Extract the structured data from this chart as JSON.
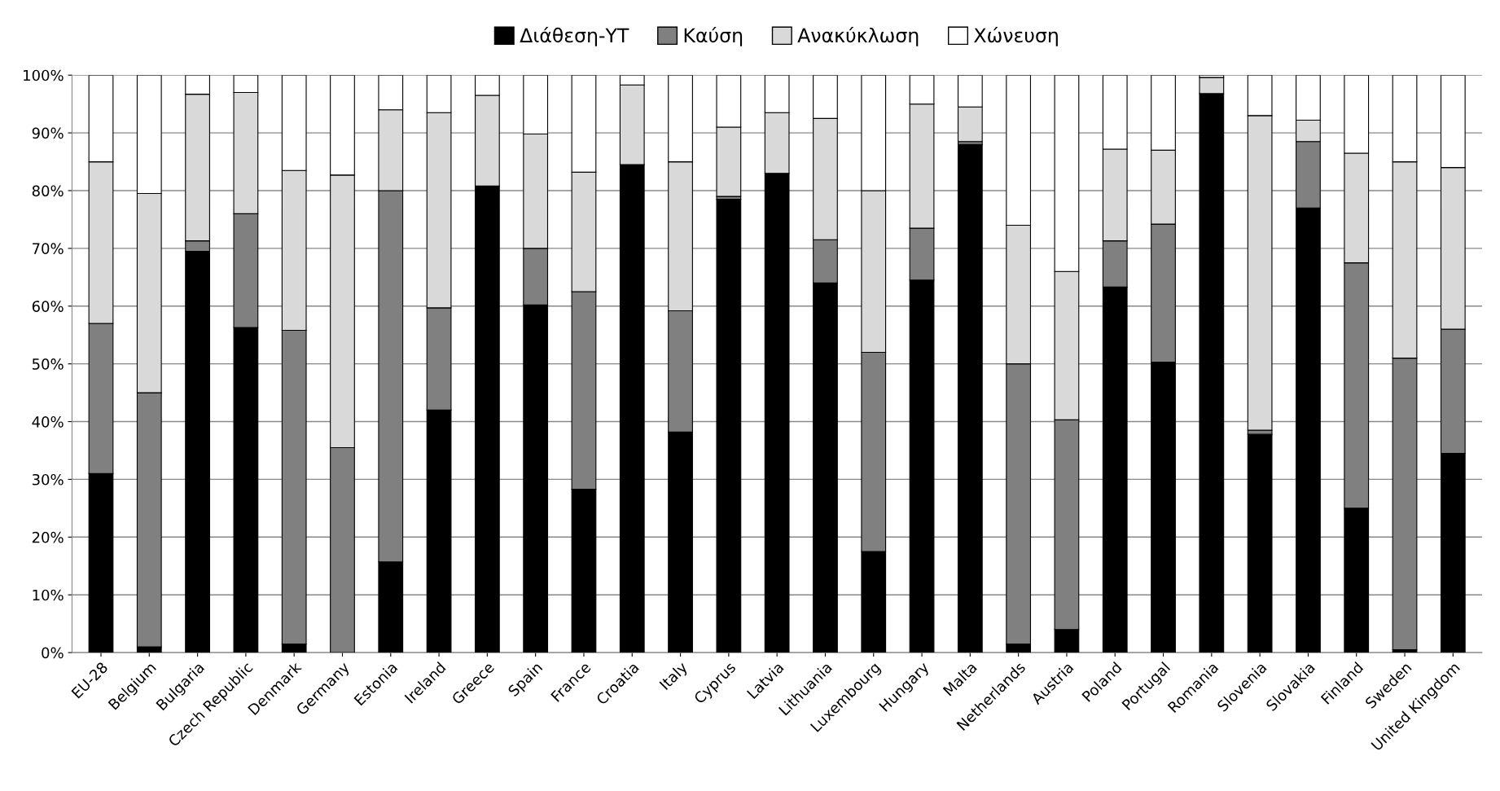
{
  "chart_data": {
    "type": "bar",
    "stacked": true,
    "categories": [
      "EU-28",
      "Belgium",
      "Bulgaria",
      "Czech Republic",
      "Denmark",
      "Germany",
      "Estonia",
      "Ireland",
      "Greece",
      "Spain",
      "France",
      "Croatia",
      "Italy",
      "Cyprus",
      "Latvia",
      "Lithuania",
      "Luxembourg",
      "Hungary",
      "Malta",
      "Netherlands",
      "Austria",
      "Poland",
      "Portugal",
      "Romania",
      "Slovenia",
      "Slovakia",
      "Finland",
      "Sweden",
      "United Kingdom"
    ],
    "series": [
      {
        "name": "Διάθεση-ΥΤ",
        "color": "#000000",
        "values": [
          31,
          1,
          69.5,
          56.3,
          1.5,
          0,
          15.7,
          42,
          80.8,
          60.2,
          28.3,
          84.5,
          38.2,
          78.5,
          83,
          64,
          17.5,
          64.5,
          88,
          1.5,
          4,
          63.3,
          50.3,
          96.8,
          37.8,
          77,
          25,
          0.5,
          34.5
        ]
      },
      {
        "name": "Καύση",
        "color": "#808080",
        "values": [
          26,
          44,
          1.8,
          19.7,
          54.3,
          35.5,
          64.3,
          17.7,
          0,
          9.8,
          34.2,
          0,
          21,
          0.5,
          0,
          7.5,
          34.5,
          9,
          0.5,
          48.5,
          36.3,
          8,
          23.9,
          0,
          0.7,
          11.5,
          42.5,
          50.5,
          21.5
        ]
      },
      {
        "name": "Ανακύκλωση",
        "color": "#d9d9d9",
        "values": [
          28,
          34.5,
          25.4,
          21,
          27.7,
          47.2,
          14,
          33.8,
          15.7,
          19.8,
          20.7,
          13.8,
          25.8,
          12,
          10.5,
          21,
          28,
          21.5,
          6,
          24,
          25.7,
          15.9,
          12.8,
          2.8,
          54.5,
          3.7,
          19,
          34,
          28
        ]
      },
      {
        "name": "Χώνευση",
        "color": "#ffffff",
        "values": [
          15,
          20.5,
          3.3,
          3,
          16.5,
          17.3,
          6,
          6.5,
          3.5,
          10.2,
          16.8,
          1.7,
          15,
          9,
          6.5,
          7.5,
          20,
          5,
          5.5,
          26,
          34,
          12.8,
          13,
          0.4,
          7,
          7.8,
          13.5,
          15,
          16
        ]
      }
    ],
    "ylim": [
      0,
      100
    ],
    "yticks": [
      {
        "value": 0,
        "label": "0%"
      },
      {
        "value": 10,
        "label": "10%"
      },
      {
        "value": 20,
        "label": "20%"
      },
      {
        "value": 30,
        "label": "30%"
      },
      {
        "value": 40,
        "label": "40%"
      },
      {
        "value": 50,
        "label": "50%"
      },
      {
        "value": 60,
        "label": "60%"
      },
      {
        "value": 70,
        "label": "70%"
      },
      {
        "value": 80,
        "label": "80%"
      },
      {
        "value": 90,
        "label": "90%"
      },
      {
        "value": 100,
        "label": "100%"
      }
    ],
    "grid": "y",
    "legend": "top"
  }
}
